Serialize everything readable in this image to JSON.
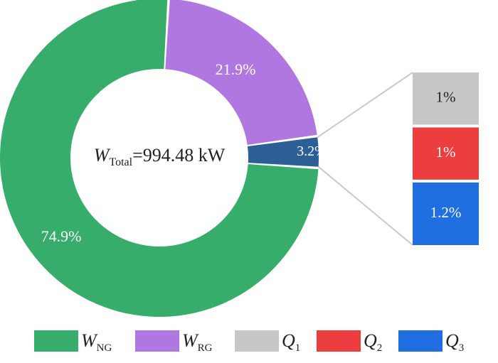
{
  "chart_data": {
    "type": "pie",
    "variant": "donut-with-breakdown-bar",
    "center_label": {
      "symbol": "W",
      "subscript": "Total",
      "value_text": "=994.48 kW"
    },
    "slices": [
      {
        "key": "W_NG",
        "value": 74.9,
        "label": "74.9%",
        "color": "#37ad6c"
      },
      {
        "key": "W_RG",
        "value": 21.9,
        "label": "21.9%",
        "color": "#b177e0"
      },
      {
        "key": "Q",
        "value": 3.2,
        "label": "3.2%",
        "color": "#2d5f97"
      }
    ],
    "breakdown": {
      "of": "Q",
      "items": [
        {
          "key": "Q1",
          "value": 1.0,
          "label": "1%",
          "color": "#c7c7c7"
        },
        {
          "key": "Q2",
          "value": 1.0,
          "label": "1%",
          "color": "#ec3d3f"
        },
        {
          "key": "Q3",
          "value": 1.2,
          "label": "1.2%",
          "color": "#1f6fe0"
        }
      ]
    },
    "legend": {
      "placement": "bottom",
      "items": [
        {
          "symbol": "W",
          "subscript": "NG",
          "color": "#37ad6c"
        },
        {
          "symbol": "W",
          "subscript": "RG",
          "color": "#b177e0"
        },
        {
          "symbol": "Q",
          "subscript": "1",
          "color": "#c7c7c7"
        },
        {
          "symbol": "Q",
          "subscript": "2",
          "color": "#ec3d3f"
        },
        {
          "symbol": "Q",
          "subscript": "3",
          "color": "#1f6fe0"
        }
      ]
    }
  }
}
